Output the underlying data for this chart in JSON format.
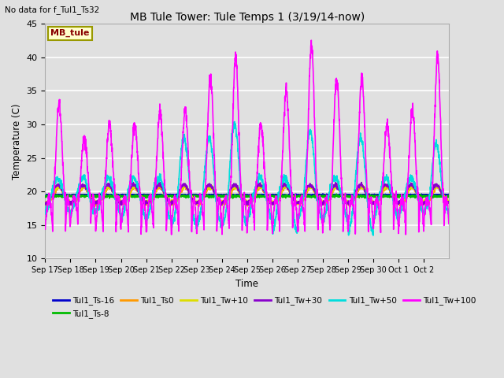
{
  "title": "MB Tule Tower: Tule Temps 1 (3/19/14-now)",
  "subtitle": "No data for f_Tul1_Ts32",
  "xlabel": "Time",
  "ylabel": "Temperature (C)",
  "ylim": [
    10,
    45
  ],
  "yticks": [
    10,
    15,
    20,
    25,
    30,
    35,
    40,
    45
  ],
  "bg_color": "#e0e0e0",
  "grid_color": "white",
  "legend_box_text": "MB_tule",
  "legend_box_color": "#ffffcc",
  "legend_box_border": "#999900",
  "series": [
    {
      "label": "Tul1_Ts-16",
      "color": "#0000cc",
      "lw": 1.2
    },
    {
      "label": "Tul1_Ts-8",
      "color": "#00bb00",
      "lw": 1.2
    },
    {
      "label": "Tul1_Ts0",
      "color": "#ff9900",
      "lw": 1.2
    },
    {
      "label": "Tul1_Tw+10",
      "color": "#dddd00",
      "lw": 1.2
    },
    {
      "label": "Tul1_Tw+30",
      "color": "#8800cc",
      "lw": 1.2
    },
    {
      "label": "Tul1_Tw+50",
      "color": "#00dddd",
      "lw": 1.2
    },
    {
      "label": "Tul1_Tw+100",
      "color": "#ff00ff",
      "lw": 1.2
    }
  ],
  "xtick_labels": [
    "Sep 17",
    "Sep 18",
    "Sep 19",
    "Sep 20",
    "Sep 21",
    "Sep 22",
    "Sep 23",
    "Sep 24",
    "Sep 25",
    "Sep 26",
    "Sep 27",
    "Sep 28",
    "Sep 29",
    "Sep 30",
    "Oct 1",
    "Oct 2"
  ],
  "n_days": 16,
  "pts_per_day": 144,
  "magenta_peaks": [
    33,
    28,
    30,
    30,
    32,
    32,
    37,
    40,
    30,
    35,
    42,
    37,
    37,
    30,
    32,
    40
  ],
  "magenta_troughs": [
    14,
    15,
    14,
    14,
    14,
    14,
    14,
    14,
    14,
    14,
    14,
    14,
    14,
    14,
    14,
    15
  ],
  "cyan_peaks": [
    22,
    22,
    22,
    22,
    22,
    28,
    28,
    30,
    22,
    22,
    29,
    22,
    28,
    22,
    22,
    27
  ],
  "cyan_troughs": [
    17,
    17,
    17,
    16,
    16,
    15,
    15,
    15,
    16,
    14,
    16,
    16,
    14,
    16,
    17,
    17
  ]
}
